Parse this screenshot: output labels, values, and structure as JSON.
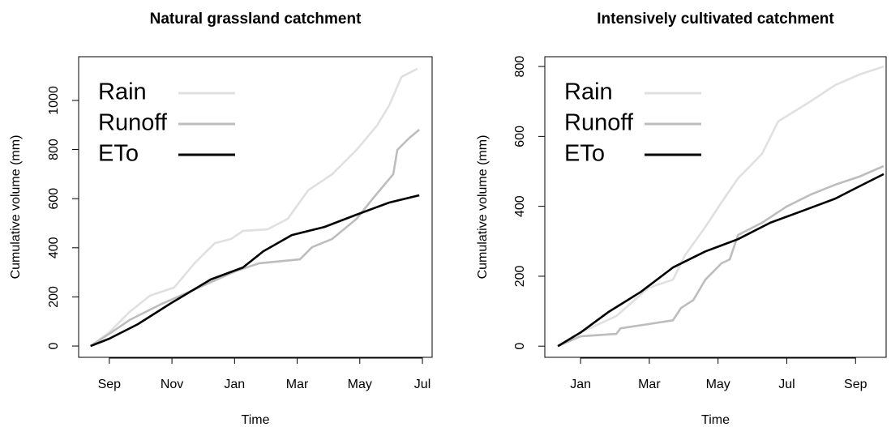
{
  "chart_data": [
    {
      "type": "line",
      "title": "Natural grassland catchment",
      "x_label": "Time",
      "y_label": "Cumulative volume (mm)",
      "xlim": [
        -0.98,
        10.31
      ],
      "xticks": [
        {
          "value": 0,
          "label": "Sep"
        },
        {
          "value": 2,
          "label": "Nov"
        },
        {
          "value": 4,
          "label": "Jan"
        },
        {
          "value": 6,
          "label": "Mar"
        },
        {
          "value": 8,
          "label": "May"
        },
        {
          "value": 10,
          "label": "Jul"
        }
      ],
      "ylim": [
        -46,
        1178
      ],
      "yticks": [
        0,
        200,
        400,
        600,
        800,
        1000
      ],
      "legend": "topleft",
      "series": [
        {
          "name": "Rain",
          "color": "#e0e0e0",
          "x": [
            -0.6,
            0,
            0.65,
            1.3,
            2.07,
            2.72,
            3.37,
            3.89,
            4.27,
            5.05,
            5.7,
            6.35,
            7.12,
            7.9,
            8.55,
            8.94,
            9.33,
            9.84
          ],
          "values": [
            0,
            56,
            139,
            205,
            238,
            337,
            419,
            436,
            469,
            475,
            518,
            634,
            700,
            799,
            898,
            980,
            1096,
            1129
          ]
        },
        {
          "name": "Runoff",
          "color": "#bdbdbd",
          "x": [
            -0.6,
            0,
            0.65,
            1.68,
            2.72,
            4.02,
            4.79,
            6.09,
            6.48,
            7.12,
            7.9,
            8.42,
            9.07,
            9.2,
            9.59,
            9.9
          ],
          "values": [
            0,
            50,
            106,
            172,
            230,
            304,
            337,
            353,
            403,
            436,
            518,
            601,
            700,
            799,
            848,
            881
          ]
        },
        {
          "name": "ETo",
          "color": "#000000",
          "x": [
            -0.6,
            0,
            0.91,
            1.94,
            3.24,
            4.27,
            4.92,
            5.83,
            6.87,
            7.9,
            8.94,
            9.9
          ],
          "values": [
            0,
            30,
            89,
            172,
            271,
            320,
            386,
            452,
            485,
            535,
            584,
            614
          ]
        }
      ]
    },
    {
      "type": "line",
      "title": "Intensively cultivated catchment",
      "x_label": "Time",
      "y_label": "Cumulative volume (mm)",
      "xlim": [
        -1.04,
        8.89
      ],
      "xticks": [
        {
          "value": 0,
          "label": "Jan"
        },
        {
          "value": 2,
          "label": "Mar"
        },
        {
          "value": 4,
          "label": "May"
        },
        {
          "value": 6,
          "label": "Jul"
        },
        {
          "value": 8,
          "label": "Sep"
        }
      ],
      "ylim": [
        -32,
        828
      ],
      "yticks": [
        0,
        200,
        400,
        600,
        800
      ],
      "legend": "topleft",
      "series": [
        {
          "name": "Rain",
          "color": "#e0e0e0",
          "x": [
            -0.66,
            0,
            1.04,
            1.98,
            2.69,
            3.04,
            3.63,
            4.1,
            4.58,
            5.28,
            5.75,
            6.7,
            7.41,
            8.11,
            8.82
          ],
          "values": [
            0,
            39,
            86,
            167,
            190,
            260,
            341,
            411,
            480,
            550,
            643,
            701,
            747,
            777,
            800
          ]
        },
        {
          "name": "Runoff",
          "color": "#bdbdbd",
          "x": [
            -0.66,
            0,
            1.04,
            1.16,
            1.98,
            2.69,
            2.92,
            3.28,
            3.63,
            4.1,
            4.34,
            4.58,
            5.28,
            5.99,
            6.7,
            7.41,
            8.11,
            8.82
          ],
          "values": [
            0,
            28,
            35,
            51,
            63,
            74,
            109,
            132,
            190,
            237,
            248,
            318,
            353,
            399,
            434,
            462,
            485,
            515
          ]
        },
        {
          "name": "ETo",
          "color": "#000000",
          "x": [
            -0.66,
            0,
            0.8,
            1.75,
            2.69,
            3.63,
            4.58,
            5.52,
            6.46,
            7.41,
            8.11,
            8.82
          ],
          "values": [
            0,
            39,
            97,
            155,
            225,
            271,
            306,
            353,
            387,
            422,
            457,
            492
          ]
        }
      ]
    }
  ]
}
